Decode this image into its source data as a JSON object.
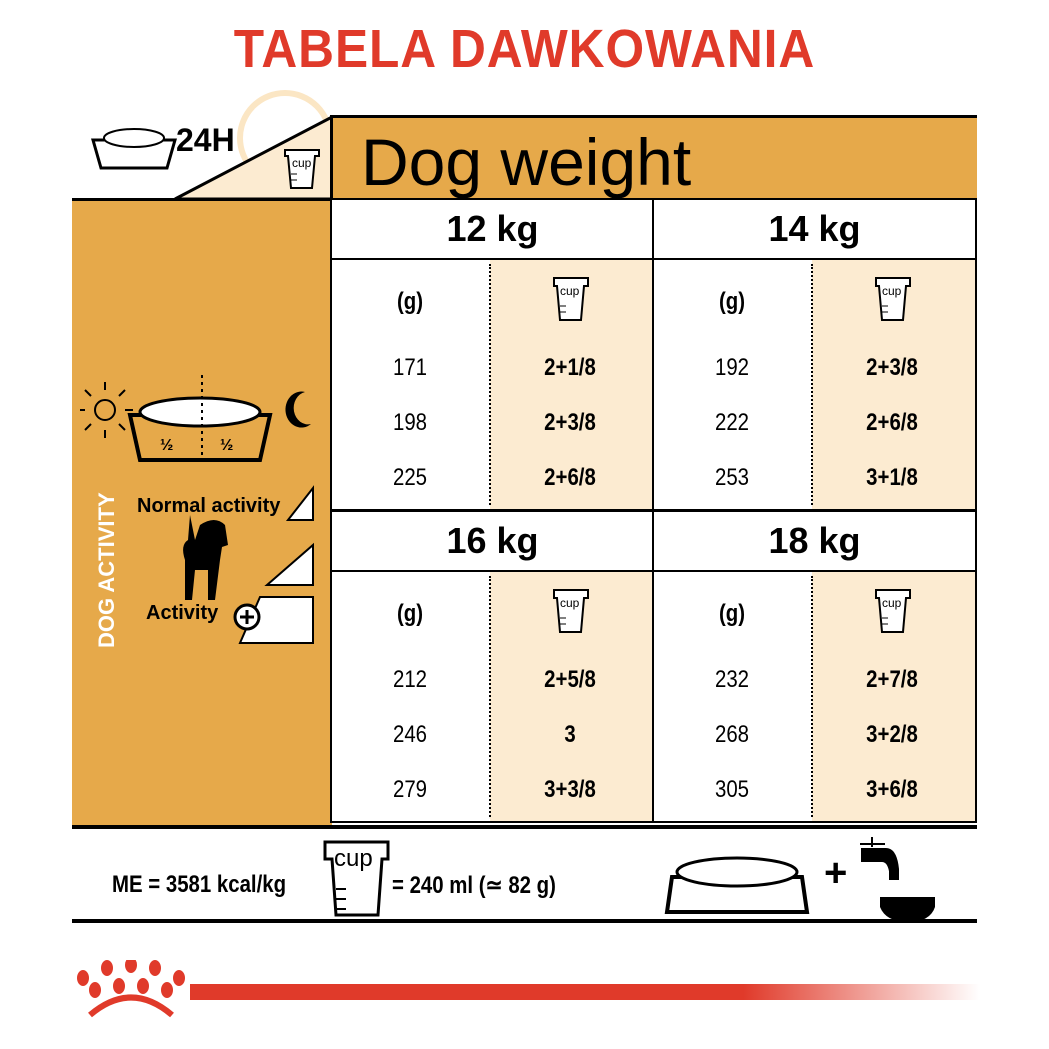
{
  "title": "TABELA DAWKOWANIA",
  "header": {
    "label_24h": "24H",
    "cup_label": "cup",
    "dog_weight": "Dog weight"
  },
  "side": {
    "dog_activity": "DOG ACTIVITY",
    "half": "½",
    "normal_activity": "Normal activity",
    "activity": "Activity"
  },
  "colors": {
    "title_red": "#e03a2a",
    "gold": "#e6a94a",
    "cream": "#fcebd1"
  },
  "tables": [
    {
      "weight": "12 kg",
      "grams_header": "(g)",
      "cup_header": "cup",
      "grams": [
        "171",
        "198",
        "225"
      ],
      "cups": [
        "2+1/8",
        "2+3/8",
        "2+6/8"
      ]
    },
    {
      "weight": "14 kg",
      "grams_header": "(g)",
      "cup_header": "cup",
      "grams": [
        "192",
        "222",
        "253"
      ],
      "cups": [
        "2+3/8",
        "2+6/8",
        "3+1/8"
      ]
    },
    {
      "weight": "16 kg",
      "grams_header": "(g)",
      "cup_header": "cup",
      "grams": [
        "212",
        "246",
        "279"
      ],
      "cups": [
        "2+5/8",
        "3",
        "3+3/8"
      ]
    },
    {
      "weight": "18 kg",
      "grams_header": "(g)",
      "cup_header": "cup",
      "grams": [
        "232",
        "268",
        "305"
      ],
      "cups": [
        "2+7/8",
        "3+2/8",
        "3+6/8"
      ]
    }
  ],
  "footer": {
    "energy": "ME = 3581 kcal/kg",
    "cup_label": "cup",
    "cup_equiv": "= 240 ml (≃ 82 g)",
    "plus": "+"
  }
}
